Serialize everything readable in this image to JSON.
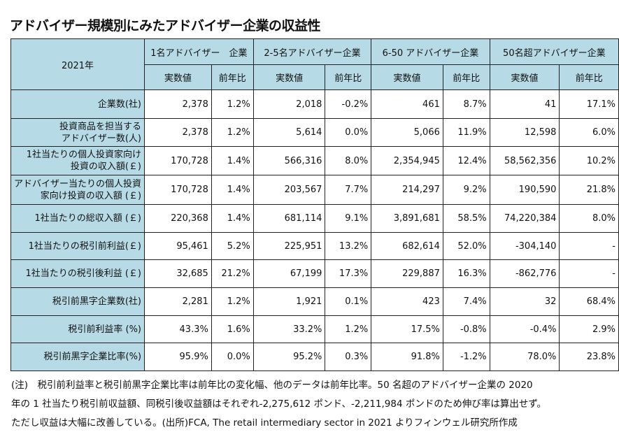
{
  "title": "アドバイザー規模別にみたアドバイザー企業の収益性",
  "table": {
    "corner": "2021年",
    "groups": [
      "1名アドバイザー　企業",
      "2-5名アドバイザー企業",
      "6-50 アドバイザー企業",
      "50名超アドバイザー企業"
    ],
    "subheaders": [
      "実数値",
      "前年比",
      "実数値",
      "前年比",
      "実数値",
      "前年比",
      "実数値",
      "前年比"
    ],
    "rows": [
      {
        "label": [
          "企業数(社)"
        ],
        "values": [
          "2,378",
          "1.2%",
          "2,018",
          "-0.2%",
          "461",
          "8.7%",
          "41",
          "17.1%"
        ]
      },
      {
        "label": [
          "投資商品を担当する",
          "アドバイザー数(人)"
        ],
        "values": [
          "2,378",
          "1.2%",
          "5,614",
          "0.0%",
          "5,066",
          "11.9%",
          "12,598",
          "6.0%"
        ]
      },
      {
        "label": [
          "1社当たりの個人投資家向け",
          "投資の収入額(￡)"
        ],
        "values": [
          "170,728",
          "1.4%",
          "566,316",
          "8.0%",
          "2,354,945",
          "12.4%",
          "58,562,356",
          "10.2%"
        ]
      },
      {
        "label": [
          "アドバイザー当たりの個人投資",
          "家向け投資の収入額 (￡)"
        ],
        "values": [
          "170,728",
          "1.4%",
          "203,567",
          "7.7%",
          "214,297",
          "9.2%",
          "190,590",
          "21.8%"
        ]
      },
      {
        "label": [
          "1社当たりの総収入額 (￡)"
        ],
        "values": [
          "220,368",
          "1.4%",
          "681,114",
          "9.1%",
          "3,891,681",
          "58.5%",
          "74,220,384",
          "8.0%"
        ]
      },
      {
        "label": [
          "1社当たりの税引前利益(￡)"
        ],
        "values": [
          "95,461",
          "5.2%",
          "225,951",
          "13.2%",
          "682,614",
          "52.0%",
          "-304,140",
          "-"
        ]
      },
      {
        "label": [
          "1社当たりの税引後利益 (￡)"
        ],
        "values": [
          "32,685",
          "21.2%",
          "67,199",
          "17.3%",
          "229,887",
          "16.3%",
          "-862,776",
          "-"
        ]
      },
      {
        "label": [
          "税引前黒字企業数(社)"
        ],
        "values": [
          "2,281",
          "1.2%",
          "1,921",
          "0.1%",
          "423",
          "7.4%",
          "32",
          "68.4%"
        ]
      },
      {
        "label": [
          "税引前利益率 (%)"
        ],
        "values": [
          "43.3%",
          "1.6%",
          "33.2%",
          "1.2%",
          "17.5%",
          "-0.8%",
          "-0.4%",
          "2.9%"
        ]
      },
      {
        "label": [
          "税引前黒字企業比率(%)"
        ],
        "values": [
          "95.9%",
          "0.0%",
          "95.2%",
          "0.3%",
          "91.8%",
          "-1.2%",
          "78.0%",
          "23.8%"
        ]
      }
    ]
  },
  "note": [
    "(注)　税引前利益率と税引前黒字企業比率は前年比の変化幅、他のデータは前年比率。50 名超のアドバイザー企業の 2020",
    "年の 1 社当たり税引前収益額、同税引後収益額はそれぞれ-2,275,612 ポンド、-2,211,984 ポンドのため伸び率は算出せず。",
    "ただし収益は大幅に改善している。(出所)FCA, The retail intermediary sector in 2021 よりフィンウェル研究所作成"
  ]
}
